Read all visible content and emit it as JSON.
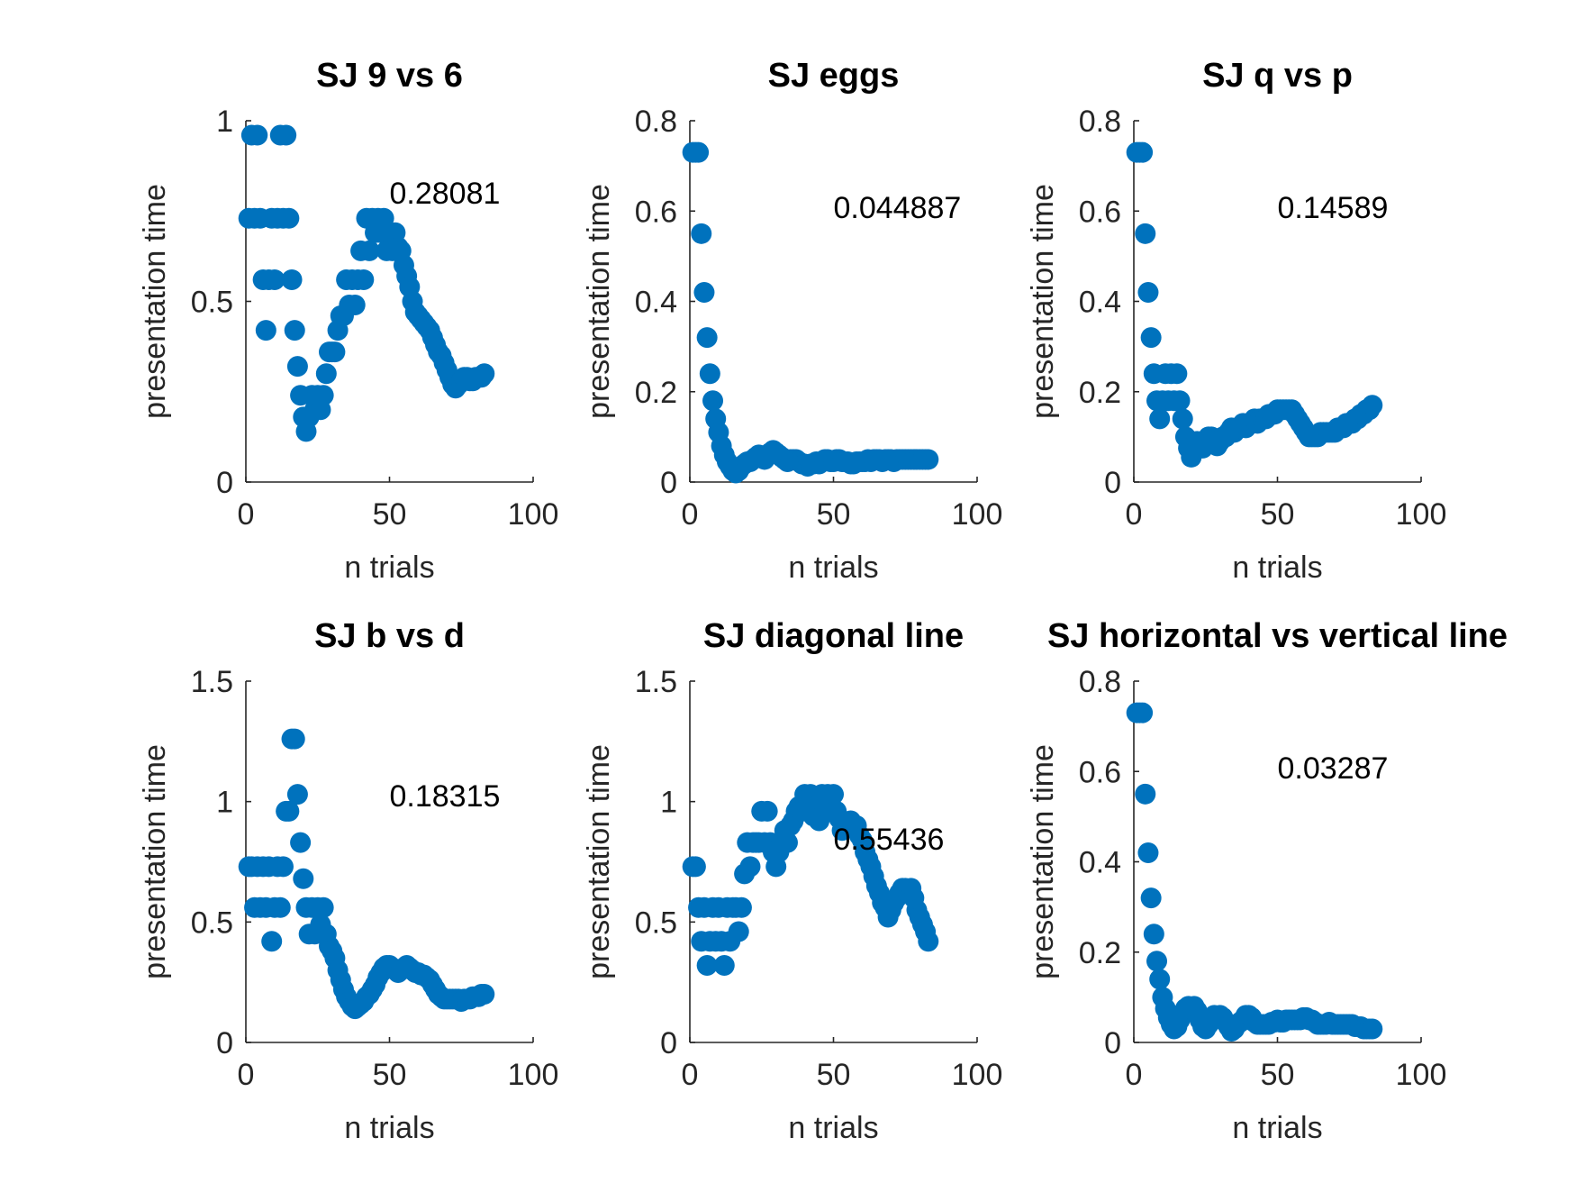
{
  "figure": {
    "marker_color": "#0072BD"
  },
  "chart_data": [
    {
      "type": "scatter",
      "title": "SJ 9 vs 6",
      "xlabel": "n trials",
      "ylabel": "presentation time",
      "xlim": [
        0,
        100
      ],
      "ylim": [
        0,
        1
      ],
      "xticks": [
        "0",
        "50",
        "100"
      ],
      "yticks": [
        "0",
        "0.5",
        "1"
      ],
      "annotation": {
        "text": "0.28081",
        "x": 50,
        "y": 0.77
      },
      "x": [
        1,
        2,
        3,
        4,
        5,
        6,
        7,
        8,
        9,
        10,
        11,
        12,
        13,
        14,
        15,
        16,
        17,
        18,
        19,
        20,
        21,
        22,
        23,
        24,
        25,
        26,
        27,
        28,
        29,
        30,
        31,
        32,
        33,
        34,
        35,
        36,
        37,
        38,
        39,
        40,
        41,
        42,
        43,
        44,
        45,
        46,
        47,
        48,
        49,
        50,
        51,
        52,
        53,
        54,
        55,
        56,
        57,
        58,
        59,
        60,
        61,
        62,
        63,
        64,
        65,
        66,
        67,
        68,
        69,
        70,
        71,
        72,
        73,
        74,
        75,
        76,
        77,
        78,
        79,
        80,
        81,
        82,
        83
      ],
      "y": [
        0.73,
        0.96,
        0.73,
        0.96,
        0.73,
        0.56,
        0.42,
        0.56,
        0.73,
        0.56,
        0.73,
        0.96,
        0.73,
        0.96,
        0.73,
        0.56,
        0.42,
        0.32,
        0.24,
        0.18,
        0.14,
        0.18,
        0.24,
        0.2,
        0.24,
        0.2,
        0.24,
        0.3,
        0.36,
        0.36,
        0.36,
        0.42,
        0.46,
        0.46,
        0.56,
        0.49,
        0.56,
        0.49,
        0.56,
        0.64,
        0.56,
        0.73,
        0.64,
        0.73,
        0.69,
        0.73,
        0.69,
        0.73,
        0.64,
        0.69,
        0.64,
        0.69,
        0.65,
        0.64,
        0.6,
        0.57,
        0.54,
        0.5,
        0.47,
        0.46,
        0.45,
        0.44,
        0.43,
        0.42,
        0.4,
        0.38,
        0.36,
        0.35,
        0.33,
        0.31,
        0.29,
        0.27,
        0.26,
        0.27,
        0.28,
        0.29,
        0.29,
        0.28,
        0.28,
        0.29,
        0.29,
        0.29,
        0.3
      ]
    },
    {
      "type": "scatter",
      "title": "SJ eggs",
      "xlabel": "n trials",
      "ylabel": "presentation time",
      "xlim": [
        0,
        100
      ],
      "ylim": [
        0,
        0.8
      ],
      "xticks": [
        "0",
        "50",
        "100"
      ],
      "yticks": [
        "0",
        "0.2",
        "0.4",
        "0.6",
        "0.8"
      ],
      "annotation": {
        "text": "0.044887",
        "x": 50,
        "y": 0.585
      },
      "x": [
        1,
        2,
        3,
        4,
        5,
        6,
        7,
        8,
        9,
        10,
        11,
        12,
        13,
        14,
        15,
        16,
        17,
        18,
        19,
        20,
        21,
        22,
        23,
        24,
        25,
        26,
        27,
        28,
        29,
        30,
        31,
        32,
        33,
        34,
        35,
        36,
        37,
        38,
        39,
        40,
        41,
        42,
        43,
        44,
        45,
        46,
        47,
        48,
        49,
        50,
        51,
        52,
        53,
        54,
        55,
        56,
        57,
        58,
        59,
        60,
        61,
        62,
        63,
        64,
        65,
        66,
        67,
        68,
        69,
        70,
        71,
        72,
        73,
        74,
        75,
        76,
        77,
        78,
        79,
        80,
        81,
        82,
        83
      ],
      "y": [
        0.73,
        0.73,
        0.73,
        0.55,
        0.42,
        0.32,
        0.24,
        0.18,
        0.14,
        0.11,
        0.08,
        0.06,
        0.045,
        0.035,
        0.025,
        0.02,
        0.025,
        0.035,
        0.04,
        0.045,
        0.045,
        0.05,
        0.055,
        0.06,
        0.055,
        0.05,
        0.06,
        0.065,
        0.07,
        0.065,
        0.06,
        0.055,
        0.05,
        0.045,
        0.05,
        0.05,
        0.05,
        0.045,
        0.04,
        0.04,
        0.035,
        0.04,
        0.04,
        0.045,
        0.04,
        0.045,
        0.05,
        0.05,
        0.045,
        0.045,
        0.05,
        0.05,
        0.045,
        0.045,
        0.045,
        0.04,
        0.04,
        0.045,
        0.045,
        0.045,
        0.045,
        0.05,
        0.045,
        0.05,
        0.05,
        0.05,
        0.045,
        0.05,
        0.05,
        0.05,
        0.045,
        0.05,
        0.05,
        0.05,
        0.05,
        0.05,
        0.05,
        0.05,
        0.05,
        0.05,
        0.05,
        0.05,
        0.05
      ]
    },
    {
      "type": "scatter",
      "title": "SJ q vs p",
      "xlabel": "n trials",
      "ylabel": "presentation time",
      "xlim": [
        0,
        100
      ],
      "ylim": [
        0,
        0.8
      ],
      "xticks": [
        "0",
        "50",
        "100"
      ],
      "yticks": [
        "0",
        "0.2",
        "0.4",
        "0.6",
        "0.8"
      ],
      "annotation": {
        "text": "0.14589",
        "x": 50,
        "y": 0.585
      },
      "x": [
        1,
        2,
        3,
        4,
        5,
        6,
        7,
        8,
        9,
        10,
        11,
        12,
        13,
        14,
        15,
        16,
        17,
        18,
        19,
        20,
        21,
        22,
        23,
        24,
        25,
        26,
        27,
        28,
        29,
        30,
        31,
        32,
        33,
        34,
        35,
        36,
        37,
        38,
        39,
        40,
        41,
        42,
        43,
        44,
        45,
        46,
        47,
        48,
        49,
        50,
        51,
        52,
        53,
        54,
        55,
        56,
        57,
        58,
        59,
        60,
        61,
        62,
        63,
        64,
        65,
        66,
        67,
        68,
        69,
        70,
        71,
        72,
        73,
        74,
        75,
        76,
        77,
        78,
        79,
        80,
        81,
        82,
        83
      ],
      "y": [
        0.73,
        0.73,
        0.73,
        0.55,
        0.42,
        0.32,
        0.24,
        0.18,
        0.14,
        0.18,
        0.24,
        0.18,
        0.24,
        0.18,
        0.24,
        0.18,
        0.14,
        0.1,
        0.075,
        0.055,
        0.075,
        0.09,
        0.075,
        0.075,
        0.09,
        0.1,
        0.1,
        0.09,
        0.08,
        0.09,
        0.1,
        0.1,
        0.11,
        0.12,
        0.11,
        0.12,
        0.12,
        0.13,
        0.12,
        0.13,
        0.13,
        0.14,
        0.13,
        0.14,
        0.14,
        0.14,
        0.15,
        0.15,
        0.15,
        0.16,
        0.16,
        0.16,
        0.16,
        0.16,
        0.16,
        0.15,
        0.14,
        0.13,
        0.12,
        0.11,
        0.1,
        0.1,
        0.1,
        0.1,
        0.11,
        0.11,
        0.11,
        0.11,
        0.11,
        0.11,
        0.12,
        0.12,
        0.12,
        0.13,
        0.13,
        0.13,
        0.14,
        0.14,
        0.15,
        0.15,
        0.16,
        0.16,
        0.17
      ]
    },
    {
      "type": "scatter",
      "title": "SJ b vs d",
      "xlabel": "n trials",
      "ylabel": "presentation time",
      "xlim": [
        0,
        100
      ],
      "ylim": [
        0,
        1.5
      ],
      "xticks": [
        "0",
        "50",
        "100"
      ],
      "yticks": [
        "0",
        "0.5",
        "1",
        "1.5"
      ],
      "annotation": {
        "text": "0.18315",
        "x": 50,
        "y": 0.98
      },
      "x": [
        1,
        2,
        3,
        4,
        5,
        6,
        7,
        8,
        9,
        10,
        11,
        12,
        13,
        14,
        15,
        16,
        17,
        18,
        19,
        20,
        21,
        22,
        23,
        24,
        25,
        26,
        27,
        28,
        29,
        30,
        31,
        32,
        33,
        34,
        35,
        36,
        37,
        38,
        39,
        40,
        41,
        42,
        43,
        44,
        45,
        46,
        47,
        48,
        49,
        50,
        51,
        52,
        53,
        54,
        55,
        56,
        57,
        58,
        59,
        60,
        61,
        62,
        63,
        64,
        65,
        66,
        67,
        68,
        69,
        70,
        71,
        72,
        73,
        74,
        75,
        76,
        77,
        78,
        79,
        80,
        81,
        82,
        83
      ],
      "y": [
        0.73,
        0.73,
        0.56,
        0.73,
        0.56,
        0.73,
        0.56,
        0.73,
        0.42,
        0.56,
        0.73,
        0.56,
        0.73,
        0.96,
        0.96,
        1.26,
        1.26,
        1.03,
        0.83,
        0.68,
        0.56,
        0.45,
        0.56,
        0.45,
        0.56,
        0.49,
        0.56,
        0.45,
        0.4,
        0.38,
        0.35,
        0.3,
        0.26,
        0.22,
        0.19,
        0.17,
        0.15,
        0.14,
        0.15,
        0.16,
        0.17,
        0.19,
        0.2,
        0.22,
        0.24,
        0.27,
        0.29,
        0.31,
        0.32,
        0.32,
        0.31,
        0.3,
        0.29,
        0.3,
        0.31,
        0.32,
        0.31,
        0.3,
        0.29,
        0.29,
        0.28,
        0.28,
        0.27,
        0.26,
        0.24,
        0.22,
        0.2,
        0.19,
        0.18,
        0.18,
        0.18,
        0.18,
        0.18,
        0.18,
        0.17,
        0.18,
        0.18,
        0.18,
        0.19,
        0.19,
        0.19,
        0.2,
        0.2
      ]
    },
    {
      "type": "scatter",
      "title": "SJ diagonal line",
      "xlabel": "n trials",
      "ylabel": "presentation time",
      "xlim": [
        0,
        100
      ],
      "ylim": [
        0,
        1.5
      ],
      "xticks": [
        "0",
        "50",
        "100"
      ],
      "yticks": [
        "0",
        "0.5",
        "1",
        "1.5"
      ],
      "annotation": {
        "text": "0.55436",
        "x": 50,
        "y": 0.8
      },
      "x": [
        1,
        2,
        3,
        4,
        5,
        6,
        7,
        8,
        9,
        10,
        11,
        12,
        13,
        14,
        15,
        16,
        17,
        18,
        19,
        20,
        21,
        22,
        23,
        24,
        25,
        26,
        27,
        28,
        29,
        30,
        31,
        32,
        33,
        34,
        35,
        36,
        37,
        38,
        39,
        40,
        41,
        42,
        43,
        44,
        45,
        46,
        47,
        48,
        49,
        50,
        51,
        52,
        53,
        54,
        55,
        56,
        57,
        58,
        59,
        60,
        61,
        62,
        63,
        64,
        65,
        66,
        67,
        68,
        69,
        70,
        71,
        72,
        73,
        74,
        75,
        76,
        77,
        78,
        79,
        80,
        81,
        82,
        83
      ],
      "y": [
        0.73,
        0.73,
        0.56,
        0.42,
        0.56,
        0.32,
        0.42,
        0.56,
        0.42,
        0.56,
        0.42,
        0.32,
        0.56,
        0.42,
        0.56,
        0.56,
        0.46,
        0.56,
        0.7,
        0.83,
        0.73,
        0.83,
        0.83,
        0.83,
        0.96,
        0.83,
        0.96,
        0.83,
        0.79,
        0.73,
        0.79,
        0.83,
        0.88,
        0.83,
        0.9,
        0.92,
        0.96,
        0.98,
        0.96,
        1.03,
        0.98,
        1.03,
        0.94,
        0.98,
        0.92,
        1.03,
        0.98,
        1.03,
        0.96,
        1.03,
        0.96,
        0.93,
        0.88,
        0.9,
        0.9,
        0.92,
        0.9,
        0.9,
        0.86,
        0.84,
        0.79,
        0.76,
        0.73,
        0.69,
        0.65,
        0.62,
        0.58,
        0.56,
        0.52,
        0.55,
        0.58,
        0.6,
        0.62,
        0.64,
        0.64,
        0.62,
        0.64,
        0.6,
        0.55,
        0.52,
        0.49,
        0.46,
        0.42
      ]
    },
    {
      "type": "scatter",
      "title": "SJ horizontal vs vertical line",
      "xlabel": "n trials",
      "ylabel": "presentation time",
      "xlim": [
        0,
        100
      ],
      "ylim": [
        0,
        0.8
      ],
      "xticks": [
        "0",
        "50",
        "100"
      ],
      "yticks": [
        "0",
        "0.2",
        "0.4",
        "0.6",
        "0.8"
      ],
      "annotation": {
        "text": "0.03287",
        "x": 50,
        "y": 0.585
      },
      "x": [
        1,
        2,
        3,
        4,
        5,
        6,
        7,
        8,
        9,
        10,
        11,
        12,
        13,
        14,
        15,
        16,
        17,
        18,
        19,
        20,
        21,
        22,
        23,
        24,
        25,
        26,
        27,
        28,
        29,
        30,
        31,
        32,
        33,
        34,
        35,
        36,
        37,
        38,
        39,
        40,
        41,
        42,
        43,
        44,
        45,
        46,
        47,
        48,
        49,
        50,
        51,
        52,
        53,
        54,
        55,
        56,
        57,
        58,
        59,
        60,
        61,
        62,
        63,
        64,
        65,
        66,
        67,
        68,
        69,
        70,
        71,
        72,
        73,
        74,
        75,
        76,
        77,
        78,
        79,
        80,
        81,
        82,
        83
      ],
      "y": [
        0.73,
        0.73,
        0.73,
        0.55,
        0.42,
        0.32,
        0.24,
        0.18,
        0.14,
        0.1,
        0.075,
        0.055,
        0.04,
        0.03,
        0.035,
        0.05,
        0.065,
        0.075,
        0.08,
        0.075,
        0.08,
        0.07,
        0.05,
        0.035,
        0.03,
        0.04,
        0.05,
        0.06,
        0.055,
        0.06,
        0.055,
        0.045,
        0.035,
        0.025,
        0.03,
        0.04,
        0.045,
        0.05,
        0.06,
        0.06,
        0.055,
        0.045,
        0.04,
        0.04,
        0.04,
        0.04,
        0.04,
        0.045,
        0.045,
        0.05,
        0.045,
        0.045,
        0.05,
        0.05,
        0.05,
        0.05,
        0.05,
        0.05,
        0.055,
        0.055,
        0.05,
        0.05,
        0.045,
        0.04,
        0.04,
        0.04,
        0.04,
        0.045,
        0.04,
        0.04,
        0.04,
        0.04,
        0.04,
        0.04,
        0.04,
        0.04,
        0.035,
        0.035,
        0.035,
        0.03,
        0.03,
        0.03,
        0.03
      ]
    }
  ]
}
